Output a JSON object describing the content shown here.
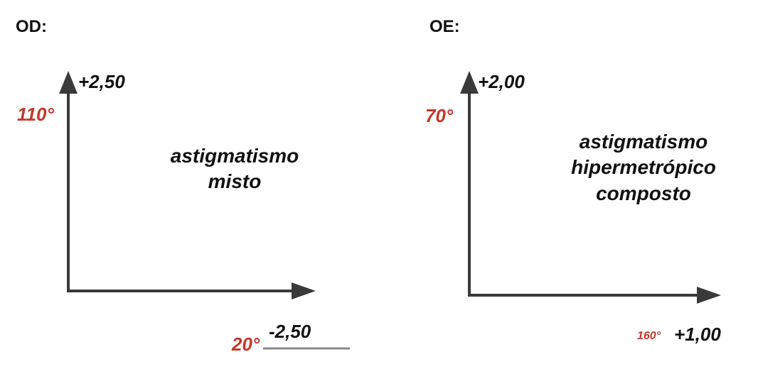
{
  "od": {
    "label": "OD:",
    "vertical_power": "+2,50",
    "vertical_angle": "110°",
    "horizontal_power": "-2,50",
    "horizontal_angle": "20°",
    "diagnosis_lines": [
      "astigmatismo",
      "misto"
    ]
  },
  "oe": {
    "label": "OE:",
    "vertical_power": "+2,00",
    "vertical_angle": "70°",
    "horizontal_power": "+1,00",
    "horizontal_angle": "160°",
    "diagnosis_lines": [
      "astigmatismo",
      "hipermetrópico",
      "composto"
    ]
  },
  "colors": {
    "axis": "#3a3a3a",
    "angle": "#c0392b",
    "text": "#111111"
  }
}
